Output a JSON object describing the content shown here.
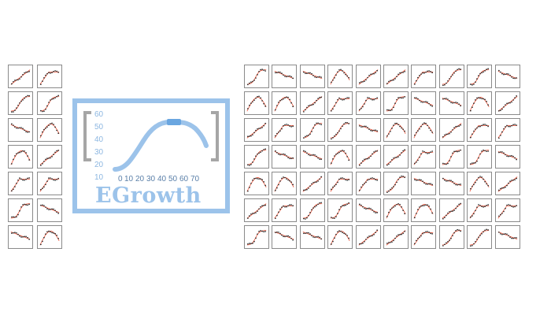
{
  "logo": {
    "title": "EGrowth",
    "y_ticks": [
      "60",
      "50",
      "40",
      "30",
      "20",
      "10"
    ],
    "x_ticks": [
      "0",
      "10",
      "20",
      "30",
      "40",
      "50",
      "60",
      "70"
    ],
    "colors": {
      "frame": "#9cc3ea",
      "curve": "#9cc3ea",
      "highlight": "#6aa6e0",
      "bracket": "#a6a6a6"
    }
  },
  "thumbnails": {
    "left_count": 14,
    "right_count": 70,
    "colors": {
      "frame": "#8a8a8a",
      "fit_line": "#e8462a",
      "points": "#222222"
    }
  }
}
